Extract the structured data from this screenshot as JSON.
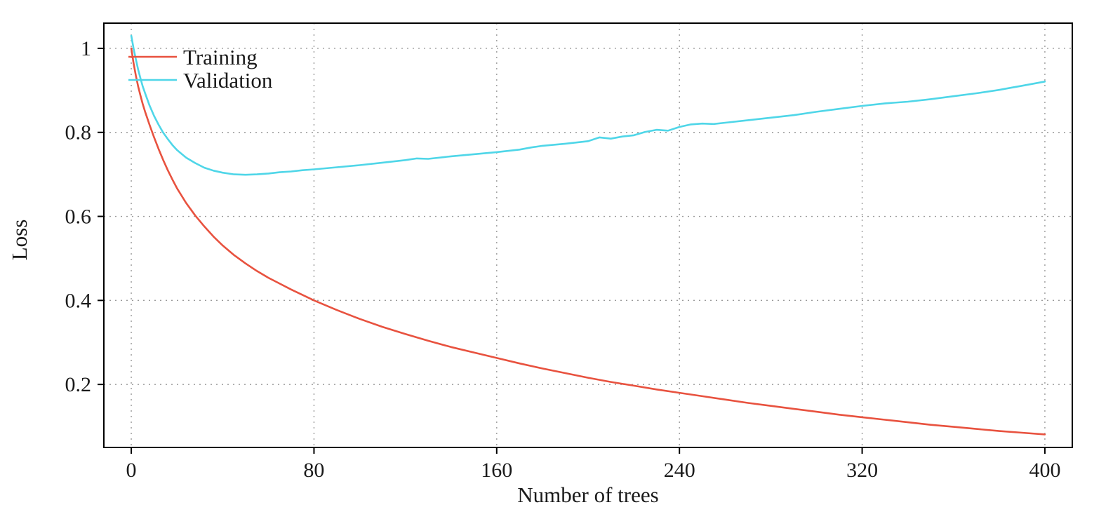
{
  "chart_data": {
    "type": "line",
    "title": "",
    "xlabel": "Number of trees",
    "ylabel": "Loss",
    "xlim": [
      -12,
      412
    ],
    "ylim": [
      0.05,
      1.06
    ],
    "xticks": [
      0,
      80,
      160,
      240,
      320,
      400
    ],
    "xtick_labels": [
      "0",
      "80",
      "160",
      "240",
      "320",
      "400"
    ],
    "yticks": [
      0.2,
      0.4,
      0.6,
      0.8,
      1
    ],
    "ytick_labels": [
      "0.2",
      "0.4",
      "0.6",
      "0.8",
      "1"
    ],
    "grid": "dotted",
    "grid_color": "#9a9a9a",
    "border_color": "#000000",
    "legend_position": "top-left",
    "series": [
      {
        "name": "Training",
        "color": "#e8523f",
        "points": [
          [
            0,
            1.0
          ],
          [
            1,
            0.965
          ],
          [
            2,
            0.935
          ],
          [
            3,
            0.91
          ],
          [
            4,
            0.888
          ],
          [
            5,
            0.868
          ],
          [
            6,
            0.85
          ],
          [
            8,
            0.818
          ],
          [
            10,
            0.788
          ],
          [
            12,
            0.76
          ],
          [
            14,
            0.734
          ],
          [
            16,
            0.71
          ],
          [
            18,
            0.688
          ],
          [
            20,
            0.667
          ],
          [
            24,
            0.632
          ],
          [
            28,
            0.602
          ],
          [
            32,
            0.576
          ],
          [
            36,
            0.552
          ],
          [
            40,
            0.531
          ],
          [
            45,
            0.508
          ],
          [
            50,
            0.488
          ],
          [
            55,
            0.47
          ],
          [
            60,
            0.454
          ],
          [
            65,
            0.44
          ],
          [
            70,
            0.426
          ],
          [
            75,
            0.413
          ],
          [
            80,
            0.4
          ],
          [
            90,
            0.377
          ],
          [
            100,
            0.356
          ],
          [
            110,
            0.337
          ],
          [
            120,
            0.32
          ],
          [
            130,
            0.304
          ],
          [
            140,
            0.289
          ],
          [
            150,
            0.276
          ],
          [
            160,
            0.263
          ],
          [
            170,
            0.25
          ],
          [
            180,
            0.238
          ],
          [
            190,
            0.227
          ],
          [
            200,
            0.216
          ],
          [
            210,
            0.206
          ],
          [
            220,
            0.197
          ],
          [
            230,
            0.188
          ],
          [
            240,
            0.18
          ],
          [
            250,
            0.172
          ],
          [
            260,
            0.164
          ],
          [
            270,
            0.156
          ],
          [
            280,
            0.149
          ],
          [
            290,
            0.142
          ],
          [
            300,
            0.135
          ],
          [
            310,
            0.128
          ],
          [
            320,
            0.122
          ],
          [
            330,
            0.116
          ],
          [
            340,
            0.11
          ],
          [
            350,
            0.104
          ],
          [
            360,
            0.099
          ],
          [
            370,
            0.094
          ],
          [
            380,
            0.089
          ],
          [
            390,
            0.085
          ],
          [
            400,
            0.081
          ]
        ]
      },
      {
        "name": "Validation",
        "color": "#4fd6e8",
        "points": [
          [
            0,
            1.03
          ],
          [
            1,
            1.0
          ],
          [
            2,
            0.974
          ],
          [
            3,
            0.95
          ],
          [
            4,
            0.929
          ],
          [
            5,
            0.91
          ],
          [
            6,
            0.894
          ],
          [
            8,
            0.864
          ],
          [
            10,
            0.839
          ],
          [
            12,
            0.818
          ],
          [
            14,
            0.799
          ],
          [
            16,
            0.784
          ],
          [
            18,
            0.77
          ],
          [
            20,
            0.758
          ],
          [
            24,
            0.74
          ],
          [
            28,
            0.727
          ],
          [
            32,
            0.716
          ],
          [
            36,
            0.709
          ],
          [
            40,
            0.704
          ],
          [
            45,
            0.7
          ],
          [
            50,
            0.699
          ],
          [
            55,
            0.7
          ],
          [
            60,
            0.702
          ],
          [
            65,
            0.705
          ],
          [
            70,
            0.707
          ],
          [
            75,
            0.71
          ],
          [
            80,
            0.712
          ],
          [
            90,
            0.717
          ],
          [
            100,
            0.722
          ],
          [
            110,
            0.728
          ],
          [
            120,
            0.734
          ],
          [
            125,
            0.738
          ],
          [
            130,
            0.737
          ],
          [
            140,
            0.743
          ],
          [
            150,
            0.748
          ],
          [
            160,
            0.753
          ],
          [
            170,
            0.759
          ],
          [
            175,
            0.764
          ],
          [
            180,
            0.768
          ],
          [
            190,
            0.773
          ],
          [
            200,
            0.779
          ],
          [
            205,
            0.788
          ],
          [
            210,
            0.785
          ],
          [
            215,
            0.79
          ],
          [
            220,
            0.793
          ],
          [
            225,
            0.801
          ],
          [
            230,
            0.806
          ],
          [
            235,
            0.804
          ],
          [
            240,
            0.813
          ],
          [
            245,
            0.819
          ],
          [
            250,
            0.821
          ],
          [
            255,
            0.82
          ],
          [
            260,
            0.823
          ],
          [
            270,
            0.829
          ],
          [
            280,
            0.835
          ],
          [
            290,
            0.841
          ],
          [
            300,
            0.849
          ],
          [
            310,
            0.856
          ],
          [
            320,
            0.863
          ],
          [
            330,
            0.869
          ],
          [
            340,
            0.873
          ],
          [
            350,
            0.879
          ],
          [
            360,
            0.886
          ],
          [
            370,
            0.893
          ],
          [
            380,
            0.901
          ],
          [
            385,
            0.906
          ],
          [
            390,
            0.911
          ],
          [
            395,
            0.916
          ],
          [
            400,
            0.921
          ]
        ]
      }
    ]
  }
}
